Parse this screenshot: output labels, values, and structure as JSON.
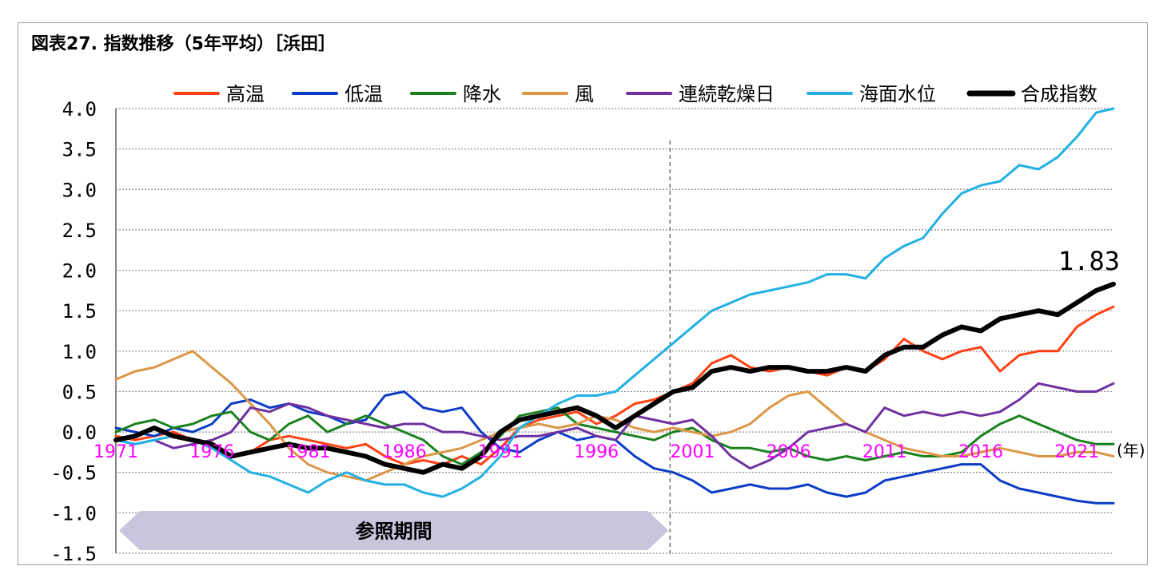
{
  "title": "図表27. 指数推移（5年平均）［浜田］",
  "chart_data": {
    "type": "line",
    "x_unit_label": "(年)",
    "x_tick_labels": [
      "1971",
      "1976",
      "1981",
      "1986",
      "1991",
      "1996",
      "2001",
      "2006",
      "2011",
      "2016",
      "2021"
    ],
    "xlim": [
      1971,
      2022.9
    ],
    "ylim": [
      -1.5,
      4.0
    ],
    "y_ticks": [
      "4.0",
      "3.5",
      "3.0",
      "2.5",
      "2.0",
      "1.5",
      "1.0",
      "0.5",
      "0.0",
      "-0.5",
      "-1.0",
      "-1.5"
    ],
    "grid": true,
    "legend_position": "top",
    "reference_period_label": "参照期間",
    "reference_period": [
      1971,
      1999
    ],
    "end_label": "1.83",
    "series": [
      {
        "name": "高温",
        "color": "#ff4013",
        "width": 3,
        "x": [
          1971,
          1972,
          1973,
          1974,
          1975,
          1976,
          1977,
          1978,
          1979,
          1980,
          1981,
          1982,
          1983,
          1984,
          1985,
          1986,
          1987,
          1988,
          1989,
          1990,
          1991,
          1992,
          1993,
          1994,
          1995,
          1996,
          1997,
          1998,
          1999,
          2000,
          2001,
          2002,
          2003,
          2004,
          2005,
          2006,
          2007,
          2008,
          2009,
          2010,
          2011,
          2012,
          2013,
          2014,
          2015,
          2016,
          2017,
          2018,
          2019,
          2020,
          2021,
          2022,
          2022.9
        ],
        "y": [
          -0.05,
          -0.1,
          -0.05,
          0.0,
          -0.1,
          -0.15,
          -0.3,
          -0.25,
          -0.1,
          -0.05,
          -0.1,
          -0.15,
          -0.2,
          -0.15,
          -0.3,
          -0.4,
          -0.35,
          -0.4,
          -0.3,
          -0.4,
          -0.2,
          0.05,
          0.15,
          0.2,
          0.25,
          0.1,
          0.2,
          0.35,
          0.4,
          0.5,
          0.6,
          0.85,
          0.95,
          0.8,
          0.75,
          0.8,
          0.75,
          0.7,
          0.8,
          0.75,
          0.9,
          1.15,
          1.0,
          0.9,
          1.0,
          1.05,
          0.75,
          0.95,
          1.0,
          1.0,
          1.3,
          1.45,
          1.55
        ]
      },
      {
        "name": "低温",
        "color": "#0c3cc6",
        "width": 3,
        "x": [
          1971,
          1972,
          1973,
          1974,
          1975,
          1976,
          1977,
          1978,
          1979,
          1980,
          1981,
          1982,
          1983,
          1984,
          1985,
          1986,
          1987,
          1988,
          1989,
          1990,
          1991,
          1992,
          1993,
          1994,
          1995,
          1996,
          1997,
          1998,
          1999,
          2000,
          2001,
          2002,
          2003,
          2004,
          2005,
          2006,
          2007,
          2008,
          2009,
          2010,
          2011,
          2012,
          2013,
          2014,
          2015,
          2016,
          2017,
          2018,
          2019,
          2020,
          2021,
          2022,
          2022.9
        ],
        "y": [
          0.05,
          0.0,
          -0.05,
          0.05,
          0.0,
          0.1,
          0.35,
          0.4,
          0.3,
          0.35,
          0.25,
          0.2,
          0.1,
          0.15,
          0.45,
          0.5,
          0.3,
          0.25,
          0.3,
          0.0,
          -0.2,
          -0.25,
          -0.1,
          0.0,
          -0.1,
          -0.05,
          -0.1,
          -0.3,
          -0.45,
          -0.5,
          -0.6,
          -0.75,
          -0.7,
          -0.65,
          -0.7,
          -0.7,
          -0.65,
          -0.75,
          -0.8,
          -0.75,
          -0.6,
          -0.55,
          -0.5,
          -0.45,
          -0.4,
          -0.4,
          -0.6,
          -0.7,
          -0.75,
          -0.8,
          -0.85,
          -0.88,
          -0.88
        ]
      },
      {
        "name": "降水",
        "color": "#19821f",
        "width": 3,
        "x": [
          1971,
          1972,
          1973,
          1974,
          1975,
          1976,
          1977,
          1978,
          1979,
          1980,
          1981,
          1982,
          1983,
          1984,
          1985,
          1986,
          1987,
          1988,
          1989,
          1990,
          1991,
          1992,
          1993,
          1994,
          1995,
          1996,
          1997,
          1998,
          1999,
          2000,
          2001,
          2002,
          2003,
          2004,
          2005,
          2006,
          2007,
          2008,
          2009,
          2010,
          2011,
          2012,
          2013,
          2014,
          2015,
          2016,
          2017,
          2018,
          2019,
          2020,
          2021,
          2022,
          2022.9
        ],
        "y": [
          0.0,
          0.1,
          0.15,
          0.05,
          0.1,
          0.2,
          0.25,
          0.0,
          -0.1,
          0.1,
          0.2,
          0.0,
          0.1,
          0.2,
          0.1,
          0.0,
          -0.1,
          -0.3,
          -0.4,
          -0.25,
          -0.05,
          0.2,
          0.25,
          0.3,
          0.1,
          0.05,
          0.0,
          -0.05,
          -0.1,
          0.0,
          0.05,
          -0.1,
          -0.2,
          -0.2,
          -0.25,
          -0.2,
          -0.3,
          -0.35,
          -0.3,
          -0.35,
          -0.3,
          -0.25,
          -0.3,
          -0.3,
          -0.25,
          -0.05,
          0.1,
          0.2,
          0.1,
          0.0,
          -0.1,
          -0.15,
          -0.15
        ]
      },
      {
        "name": "風",
        "color": "#dc9646",
        "width": 3,
        "x": [
          1971,
          1972,
          1973,
          1974,
          1975,
          1976,
          1977,
          1978,
          1979,
          1980,
          1981,
          1982,
          1983,
          1984,
          1985,
          1986,
          1987,
          1988,
          1989,
          1990,
          1991,
          1992,
          1993,
          1994,
          1995,
          1996,
          1997,
          1998,
          1999,
          2000,
          2001,
          2002,
          2003,
          2004,
          2005,
          2006,
          2007,
          2008,
          2009,
          2010,
          2011,
          2012,
          2013,
          2014,
          2015,
          2016,
          2017,
          2018,
          2019,
          2020,
          2021,
          2022,
          2022.9
        ],
        "y": [
          0.65,
          0.75,
          0.8,
          0.9,
          1.0,
          0.8,
          0.6,
          0.35,
          0.1,
          -0.2,
          -0.4,
          -0.5,
          -0.55,
          -0.6,
          -0.5,
          -0.4,
          -0.3,
          -0.25,
          -0.2,
          -0.1,
          0.0,
          0.05,
          0.1,
          0.05,
          0.1,
          0.2,
          0.15,
          0.05,
          0.0,
          0.05,
          0.0,
          -0.05,
          0.0,
          0.1,
          0.3,
          0.45,
          0.5,
          0.3,
          0.1,
          0.0,
          -0.1,
          -0.2,
          -0.25,
          -0.3,
          -0.3,
          -0.25,
          -0.2,
          -0.25,
          -0.3,
          -0.3,
          -0.25,
          -0.25,
          -0.3
        ]
      },
      {
        "name": "連続乾燥日",
        "color": "#7030a0",
        "width": 3,
        "x": [
          1971,
          1972,
          1973,
          1974,
          1975,
          1976,
          1977,
          1978,
          1979,
          1980,
          1981,
          1982,
          1983,
          1984,
          1985,
          1986,
          1987,
          1988,
          1989,
          1990,
          1991,
          1992,
          1993,
          1994,
          1995,
          1996,
          1997,
          1998,
          1999,
          2000,
          2001,
          2002,
          2003,
          2004,
          2005,
          2006,
          2007,
          2008,
          2009,
          2010,
          2011,
          2012,
          2013,
          2014,
          2015,
          2016,
          2017,
          2018,
          2019,
          2020,
          2021,
          2022,
          2022.9
        ],
        "y": [
          -0.1,
          -0.15,
          -0.1,
          -0.2,
          -0.15,
          -0.1,
          0.0,
          0.3,
          0.25,
          0.35,
          0.3,
          0.2,
          0.15,
          0.1,
          0.05,
          0.1,
          0.1,
          0.0,
          0.0,
          -0.05,
          -0.1,
          -0.05,
          -0.05,
          0.0,
          0.05,
          -0.05,
          -0.1,
          0.2,
          0.15,
          0.1,
          0.15,
          -0.05,
          -0.3,
          -0.45,
          -0.35,
          -0.2,
          0.0,
          0.05,
          0.1,
          0.0,
          0.3,
          0.2,
          0.25,
          0.2,
          0.25,
          0.2,
          0.25,
          0.4,
          0.6,
          0.55,
          0.5,
          0.5,
          0.6
        ]
      },
      {
        "name": "海面水位",
        "color": "#21b0e3",
        "width": 3,
        "x": [
          1971,
          1972,
          1973,
          1974,
          1975,
          1976,
          1977,
          1978,
          1979,
          1980,
          1981,
          1982,
          1983,
          1984,
          1985,
          1986,
          1987,
          1988,
          1989,
          1990,
          1991,
          1992,
          1993,
          1994,
          1995,
          1996,
          1997,
          1998,
          1999,
          2000,
          2001,
          2002,
          2003,
          2004,
          2005,
          2006,
          2007,
          2008,
          2009,
          2010,
          2011,
          2012,
          2013,
          2014,
          2015,
          2016,
          2017,
          2018,
          2019,
          2020,
          2021,
          2022,
          2022.9
        ],
        "y": [
          -0.1,
          -0.15,
          -0.1,
          -0.05,
          -0.1,
          -0.2,
          -0.35,
          -0.5,
          -0.55,
          -0.65,
          -0.75,
          -0.6,
          -0.5,
          -0.6,
          -0.65,
          -0.65,
          -0.75,
          -0.8,
          -0.7,
          -0.55,
          -0.3,
          0.05,
          0.2,
          0.35,
          0.45,
          0.45,
          0.5,
          0.7,
          0.9,
          1.1,
          1.3,
          1.5,
          1.6,
          1.7,
          1.75,
          1.8,
          1.85,
          1.95,
          1.95,
          1.9,
          2.15,
          2.3,
          2.4,
          2.7,
          2.95,
          3.05,
          3.1,
          3.3,
          3.25,
          3.4,
          3.65,
          3.95,
          4.0
        ]
      },
      {
        "name": "合成指数",
        "color": "#000000",
        "width": 6,
        "x": [
          1971,
          1972,
          1973,
          1974,
          1975,
          1976,
          1977,
          1978,
          1979,
          1980,
          1981,
          1982,
          1983,
          1984,
          1985,
          1986,
          1987,
          1988,
          1989,
          1990,
          1991,
          1992,
          1993,
          1994,
          1995,
          1996,
          1997,
          1998,
          1999,
          2000,
          2001,
          2002,
          2003,
          2004,
          2005,
          2006,
          2007,
          2008,
          2009,
          2010,
          2011,
          2012,
          2013,
          2014,
          2015,
          2016,
          2017,
          2018,
          2019,
          2020,
          2021,
          2022,
          2022.9
        ],
        "y": [
          -0.1,
          -0.05,
          0.05,
          -0.05,
          -0.1,
          -0.15,
          -0.3,
          -0.25,
          -0.2,
          -0.15,
          -0.2,
          -0.2,
          -0.25,
          -0.3,
          -0.4,
          -0.45,
          -0.5,
          -0.4,
          -0.45,
          -0.3,
          0.0,
          0.15,
          0.2,
          0.25,
          0.3,
          0.2,
          0.05,
          0.2,
          0.35,
          0.5,
          0.55,
          0.75,
          0.8,
          0.75,
          0.8,
          0.8,
          0.75,
          0.75,
          0.8,
          0.75,
          0.95,
          1.05,
          1.05,
          1.2,
          1.3,
          1.25,
          1.4,
          1.45,
          1.5,
          1.45,
          1.6,
          1.75,
          1.83
        ]
      }
    ]
  }
}
